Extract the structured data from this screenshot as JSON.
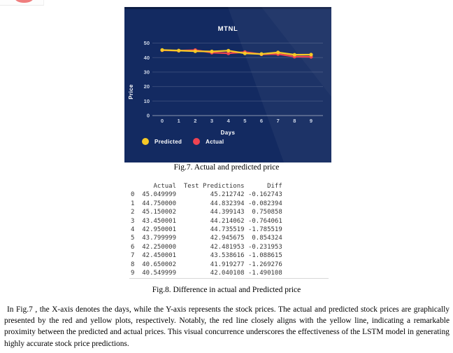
{
  "window": {
    "corner_accent_color": "#ef7e7e"
  },
  "chart": {
    "title": "MTNL",
    "xlabel": "Days",
    "ylabel": "Price",
    "background": "#132a61",
    "legend": [
      {
        "label": "Predicted",
        "color": "#f6c926"
      },
      {
        "label": "Actual",
        "color": "#ef4351"
      }
    ]
  },
  "chart_data": {
    "type": "line",
    "title": "MTNL",
    "xlabel": "Days",
    "ylabel": "Price",
    "x": [
      0,
      1,
      2,
      3,
      4,
      5,
      6,
      7,
      8,
      9
    ],
    "xticks": [
      0,
      1,
      2,
      3,
      4,
      5,
      6,
      7,
      8,
      9
    ],
    "yticks": [
      0,
      10,
      20,
      30,
      40,
      50
    ],
    "ylim": [
      0,
      55
    ],
    "grid": true,
    "legend_position": "bottom-left",
    "series": [
      {
        "name": "Predicted",
        "color": "#f6c926",
        "values": [
          45.212742,
          44.832394,
          44.399143,
          44.214062,
          44.735519,
          42.945675,
          42.481953,
          43.538616,
          41.919277,
          42.040108
        ]
      },
      {
        "name": "Actual",
        "color": "#ef4351",
        "values": [
          45.049999,
          44.75,
          45.150002,
          43.450001,
          42.950001,
          43.799999,
          42.25,
          42.450001,
          40.650002,
          40.549999
        ]
      }
    ]
  },
  "captions": {
    "fig7": "Fig.7. Actual and predicted price",
    "fig8": "Fig.8. Difference in actual and Predicted price"
  },
  "table": {
    "columns": [
      "Actual",
      "Test Predictions",
      "Diff"
    ],
    "rows": [
      {
        "index": "0",
        "actual": "45.049999",
        "test_prediction": "45.212742",
        "diff": "-0.162743"
      },
      {
        "index": "1",
        "actual": "44.750000",
        "test_prediction": "44.832394",
        "diff": "-0.082394"
      },
      {
        "index": "2",
        "actual": "45.150002",
        "test_prediction": "44.399143",
        "diff": "0.750858"
      },
      {
        "index": "3",
        "actual": "43.450001",
        "test_prediction": "44.214062",
        "diff": "-0.764061"
      },
      {
        "index": "4",
        "actual": "42.950001",
        "test_prediction": "44.735519",
        "diff": "-1.785519"
      },
      {
        "index": "5",
        "actual": "43.799999",
        "test_prediction": "42.945675",
        "diff": "0.854324"
      },
      {
        "index": "6",
        "actual": "42.250000",
        "test_prediction": "42.481953",
        "diff": "-0.231953"
      },
      {
        "index": "7",
        "actual": "42.450001",
        "test_prediction": "43.538616",
        "diff": "-1.088615"
      },
      {
        "index": "8",
        "actual": "40.650002",
        "test_prediction": "41.919277",
        "diff": "-1.269276"
      },
      {
        "index": "9",
        "actual": "40.549999",
        "test_prediction": "42.040108",
        "diff": "-1.490108"
      }
    ]
  },
  "paragraph": {
    "text": "In Fig.7 , the X-axis denotes the days, while the Y-axis represents the stock prices. The actual and predicted stock prices are graphically presented by the red and yellow plots, respectively. Notably, the red line closely aligns with the yellow line, indicating a remarkable proximity between the predicted and actual prices. This visual concurrence underscores the effectiveness of the LSTM model in generating highly accurate stock price predictions."
  }
}
